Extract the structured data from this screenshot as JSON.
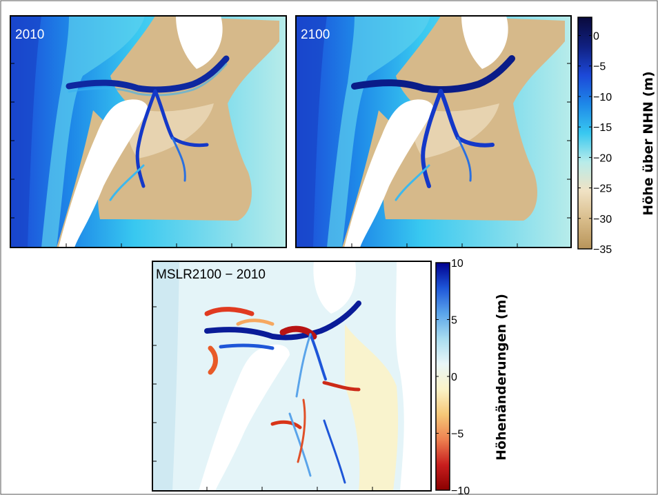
{
  "chart_data": [
    {
      "type": "heatmap",
      "panel_label": "2010",
      "grid": false,
      "colorbar": {
        "ticks": [
          "0",
          "−5",
          "−10",
          "−15",
          "−20",
          "−25",
          "−30",
          "−35"
        ],
        "label": "Höhe über NHN (m)",
        "range": [
          -35,
          3
        ],
        "colors": [
          "#0a0a3c",
          "#102080",
          "#1c48d8",
          "#1e88e8",
          "#38c8f0",
          "#b8ecea",
          "#f0e2c4",
          "#d8bc8a",
          "#b8945a"
        ]
      }
    },
    {
      "type": "heatmap",
      "panel_label": "2100",
      "grid": false
    },
    {
      "type": "heatmap",
      "panel_label": "MSLR2100 − 2010",
      "grid": false,
      "colorbar": {
        "ticks": [
          "10",
          "5",
          "0",
          "−5",
          "−10"
        ],
        "label": "Höhenänderungen (m)",
        "range": [
          -10,
          10
        ],
        "colors": [
          "#00008f",
          "#1e56d8",
          "#5aa4ea",
          "#a8dcf0",
          "#e8f6f8",
          "#fbf3c8",
          "#f6c878",
          "#ee8050",
          "#c81e1e",
          "#8a0000"
        ]
      }
    }
  ]
}
